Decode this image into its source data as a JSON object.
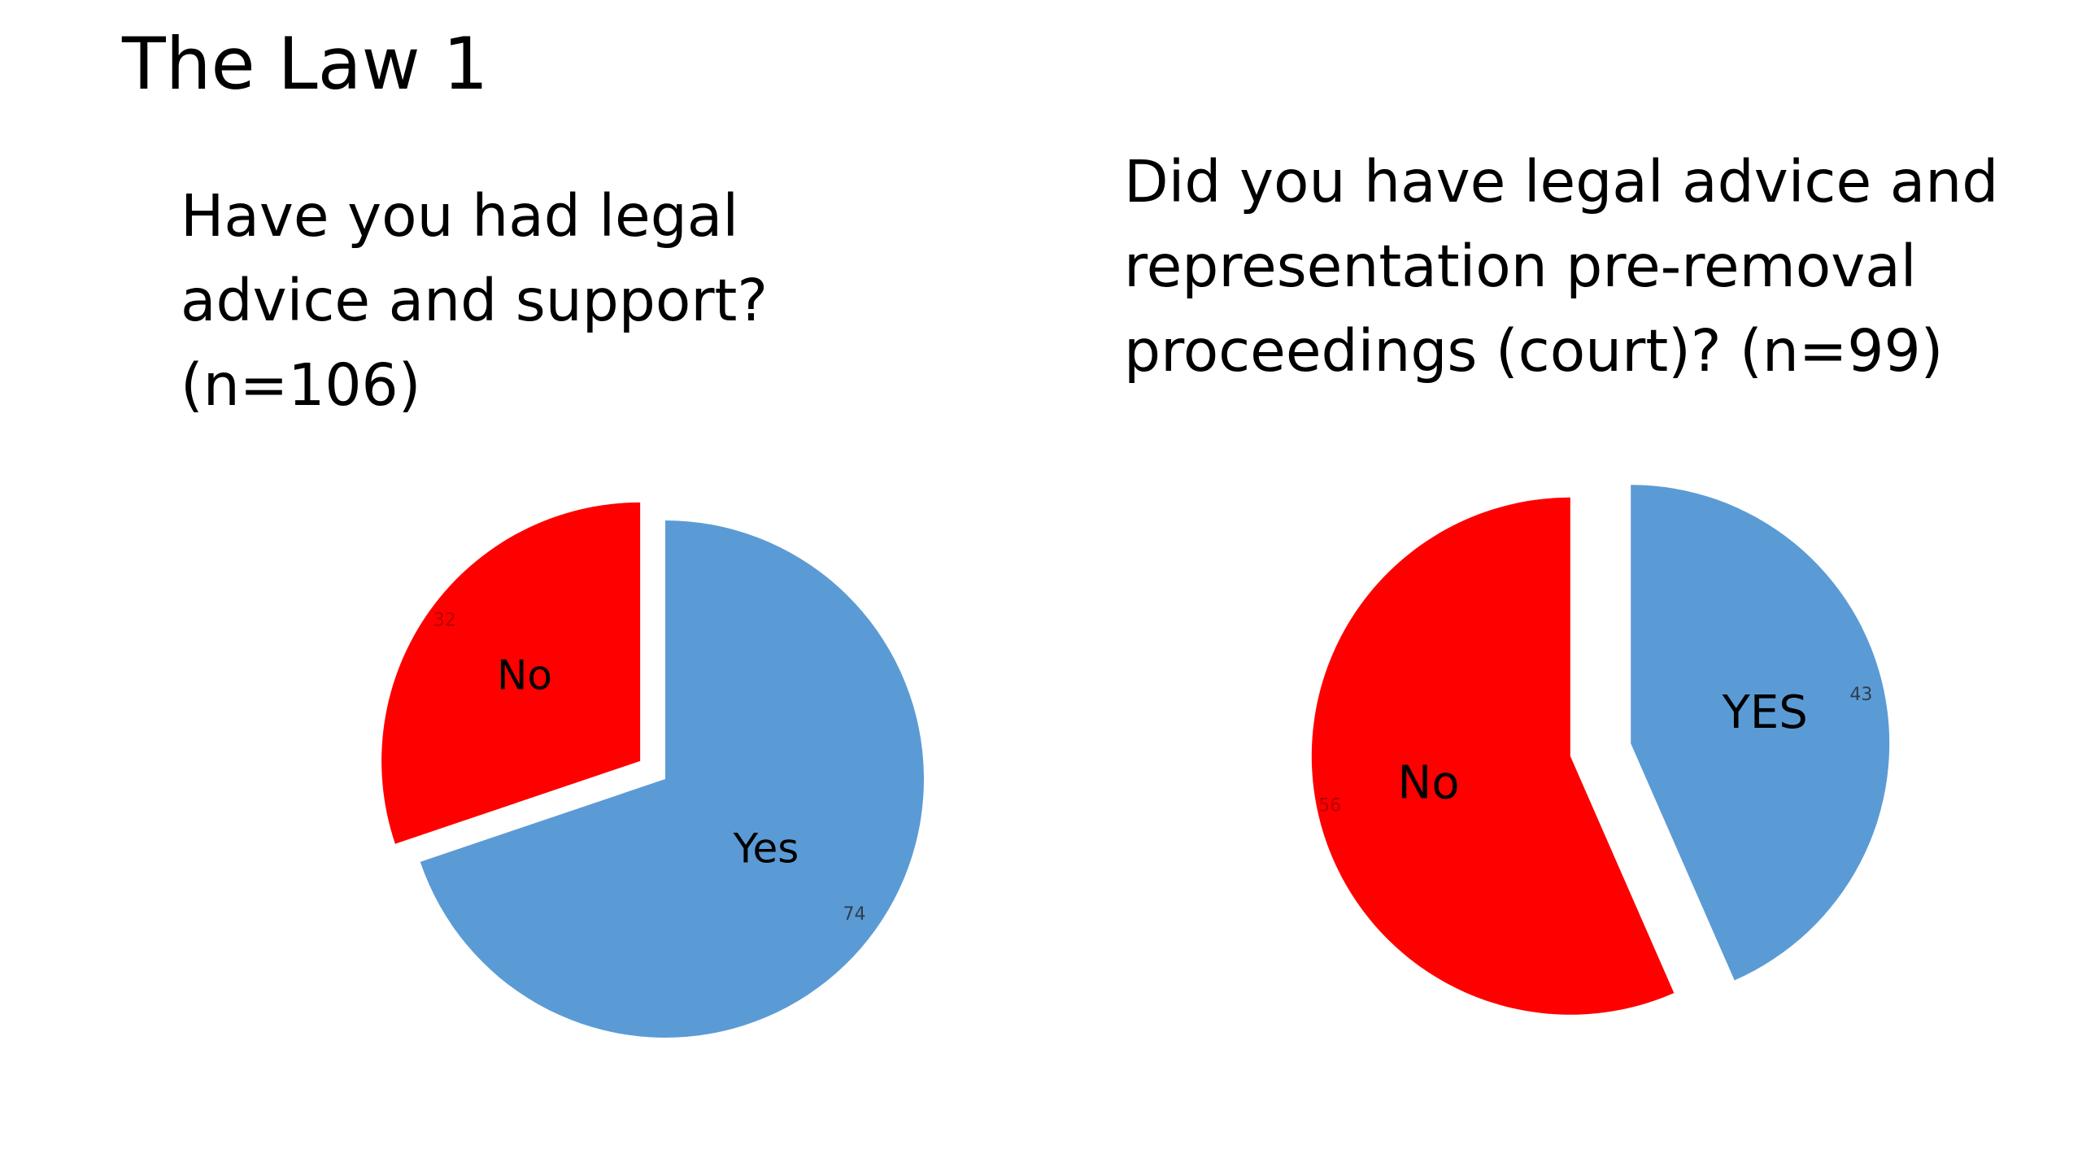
{
  "slide": {
    "title": "The Law 1"
  },
  "colors": {
    "no": "#ff0000",
    "yes": "#5b9bd5",
    "no_value_label": "#b00000",
    "yes_value_label": "#2f3d4d"
  },
  "chart_data": [
    {
      "type": "pie",
      "title_lines": [
        "Have you had legal",
        "advice and support?",
        "(n=106)"
      ],
      "categories": [
        "No",
        "Yes"
      ],
      "values": [
        32,
        74
      ],
      "exploded": "No",
      "legend": "none"
    },
    {
      "type": "pie",
      "title_lines": [
        "Did you have legal advice and",
        "representation pre-removal",
        "proceedings (court)? (n=99)"
      ],
      "categories": [
        "No",
        "YES"
      ],
      "values": [
        56,
        43
      ],
      "exploded": "all",
      "legend": "none"
    }
  ]
}
